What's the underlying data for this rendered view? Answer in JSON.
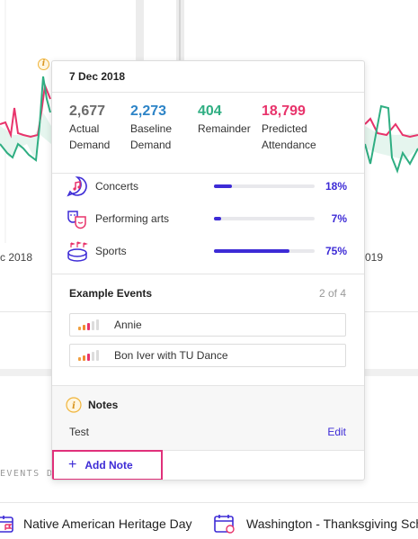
{
  "background": {
    "axis_labels": [
      "c 2018",
      "019"
    ],
    "events_label": "EVENTS DR",
    "holidays": [
      {
        "label": "Native American Heritage Day",
        "icon": "calendar-flag-icon"
      },
      {
        "label": "Washington - Thanksgiving Sch",
        "icon": "calendar-apple-icon"
      }
    ],
    "info_marker": "i"
  },
  "tooltip": {
    "date": "7 Dec 2018",
    "metrics": [
      {
        "value": "2,677",
        "label": "Actual Demand",
        "color": "#6b6b6b"
      },
      {
        "value": "2,273",
        "label": "Baseline Demand",
        "color": "#2d84c7"
      },
      {
        "value": "404",
        "label": "Remainder",
        "color": "#2fae82"
      },
      {
        "value": "18,799",
        "label": "Predicted Attendance",
        "color": "#e8336b"
      }
    ],
    "categories": [
      {
        "label": "Concerts",
        "percent_text": "18%",
        "percent": 18,
        "icon": "music-note-icon"
      },
      {
        "label": "Performing arts",
        "percent_text": "7%",
        "percent": 7,
        "icon": "theater-masks-icon"
      },
      {
        "label": "Sports",
        "percent_text": "75%",
        "percent": 75,
        "icon": "stadium-icon"
      }
    ],
    "examples": {
      "title": "Example Events",
      "count": "2 of 4",
      "items": [
        {
          "name": "Annie"
        },
        {
          "name": "Bon Iver with TU Dance"
        }
      ]
    },
    "notes": {
      "title": "Notes",
      "text": "Test",
      "edit_label": "Edit",
      "icon_glyph": "i"
    },
    "add_note": {
      "plus": "+",
      "label": "Add Note"
    }
  },
  "colors": {
    "accent": "#3d2bd6",
    "highlight": "#e0307a",
    "actual_line": "#2fae82",
    "predicted_line": "#e8336b"
  }
}
